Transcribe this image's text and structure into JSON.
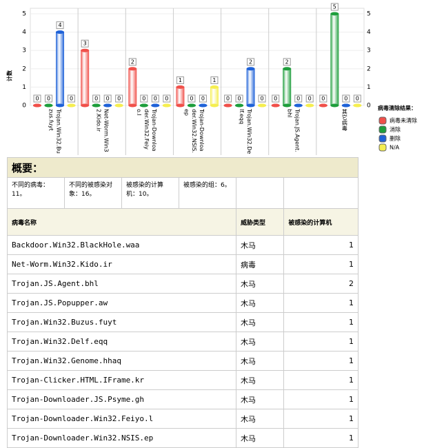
{
  "chart_data": {
    "type": "bar",
    "y_label": "计数",
    "legend_title": "病毒清除结果：",
    "legend": "right",
    "grid": true,
    "categories": [
      "Trojan.Win32.Buzus.fuyt",
      "Net-Worm.Win32.Kido.ir",
      "Trojan-Downloader.Win32.Feiyo.l",
      "Trojan-Downloader.Win32.NSIS.ep",
      "Trojan.Win32.Delf.eqq",
      "Trojan.JS.Agent.bhl",
      "其它病毒"
    ],
    "series": [
      {
        "name": "病毒未清除",
        "color": "#f0504a",
        "values": [
          0,
          3,
          2,
          1,
          0,
          0,
          0
        ]
      },
      {
        "name": "消除",
        "color": "#1e9e3c",
        "values": [
          0,
          0,
          0,
          0,
          0,
          2,
          5
        ]
      },
      {
        "name": "删除",
        "color": "#1f62d8",
        "values": [
          4,
          0,
          0,
          0,
          2,
          0,
          0
        ]
      },
      {
        "name": "N/A",
        "color": "#f5ee50",
        "values": [
          0,
          0,
          0,
          1,
          0,
          0,
          0
        ]
      }
    ],
    "ylim": [
      0,
      5
    ],
    "yticks": [
      0,
      1,
      2,
      3,
      4,
      5
    ],
    "y2lim": [
      0,
      5
    ],
    "y2ticks": [
      0,
      1,
      2,
      3,
      4,
      5
    ]
  },
  "table": {
    "title": "概要：",
    "summary": [
      "不同的病毒：11。",
      "不同的被感染对象：16。",
      "被感染的计算机：10。",
      "被感染的组：6。"
    ],
    "headers": [
      "病毒名称",
      "威胁类型",
      "被感染的计算机"
    ],
    "rows": [
      [
        "Backdoor.Win32.BlackHole.waa",
        "木马",
        1
      ],
      [
        "Net-Worm.Win32.Kido.ir",
        "病毒",
        1
      ],
      [
        "Trojan.JS.Agent.bhl",
        "木马",
        2
      ],
      [
        "Trojan.JS.Popupper.aw",
        "木马",
        1
      ],
      [
        "Trojan.Win32.Buzus.fuyt",
        "木马",
        1
      ],
      [
        "Trojan.Win32.Delf.eqq",
        "木马",
        1
      ],
      [
        "Trojan.Win32.Genome.hhaq",
        "木马",
        1
      ],
      [
        "Trojan-Clicker.HTML.IFrame.kr",
        "木马",
        1
      ],
      [
        "Trojan-Downloader.JS.Psyme.gh",
        "木马",
        1
      ],
      [
        "Trojan-Downloader.Win32.Feiyo.l",
        "木马",
        1
      ],
      [
        "Trojan-Downloader.Win32.NSIS.ep",
        "木马",
        1
      ]
    ]
  }
}
